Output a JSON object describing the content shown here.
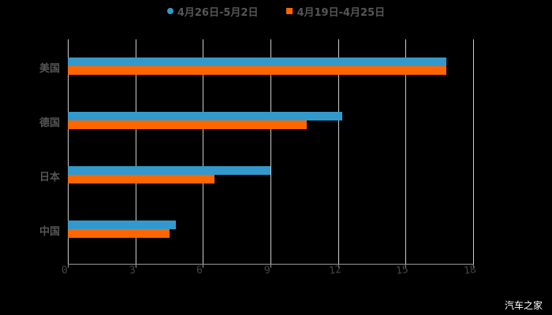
{
  "chart_data": {
    "type": "bar",
    "orientation": "horizontal",
    "title": "",
    "categories": [
      "美国",
      "德国",
      "日本",
      "中国"
    ],
    "series": [
      {
        "name": "4月26日-5月2日",
        "color": "#3399cc",
        "values": [
          16.8,
          12.2,
          9.0,
          4.8
        ]
      },
      {
        "name": "4月19日-4月25日",
        "color": "#ff6600",
        "values": [
          16.8,
          10.6,
          6.5,
          4.5
        ]
      }
    ],
    "xlabel": "",
    "ylabel": "",
    "xlim": [
      0,
      18
    ],
    "xticks": [
      "0",
      "3",
      "6",
      "9",
      "12",
      "15",
      "18"
    ],
    "grid": true,
    "legend_position": "top"
  },
  "legend": {
    "items": [
      {
        "label": "4月26日-5月2日",
        "color": "#3399cc"
      },
      {
        "label": "4月19日-4月25日",
        "color": "#ff6600"
      }
    ]
  },
  "watermark": "汽车之家",
  "colors": {
    "background": "#000000",
    "series1": "#3399cc",
    "series2": "#ff6600"
  }
}
